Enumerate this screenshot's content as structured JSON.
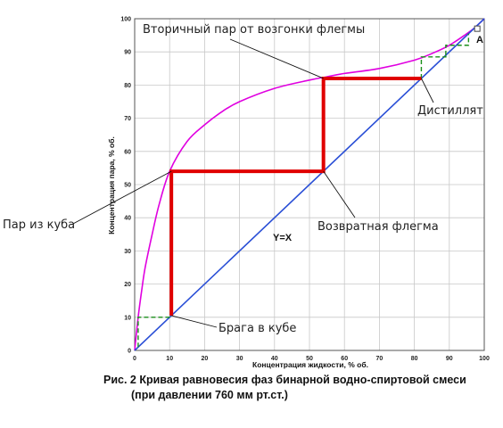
{
  "chart_data": {
    "type": "line",
    "xlabel": "Концентрация жидкости, % об.",
    "ylabel": "Концентрация пара, % об.",
    "xlim": [
      0,
      100
    ],
    "ylim": [
      0,
      100
    ],
    "xticks": [
      0,
      10,
      20,
      30,
      40,
      50,
      60,
      70,
      80,
      90,
      100
    ],
    "yticks": [
      0,
      10,
      20,
      30,
      40,
      50,
      60,
      70,
      80,
      90,
      100
    ],
    "grid": true,
    "series": [
      {
        "kind": "equilibrium-curve",
        "color": "#e000e0",
        "x": [
          0,
          1,
          2,
          3,
          5,
          7,
          10,
          15,
          20,
          25,
          30,
          40,
          50,
          55,
          60,
          70,
          80,
          85,
          90,
          95,
          97.2,
          100
        ],
        "y": [
          0,
          10,
          18,
          25,
          35,
          44,
          54,
          63,
          68,
          72,
          75,
          79,
          81.5,
          82.5,
          83.5,
          85,
          87.5,
          89.5,
          92,
          95.5,
          97.2,
          100
        ]
      },
      {
        "kind": "diagonal",
        "color": "#2a4fd6",
        "x": [
          0,
          100
        ],
        "y": [
          0,
          100
        ]
      }
    ],
    "steps_red": {
      "color": "#e00000",
      "x": [
        10.5,
        10.5,
        54,
        54,
        82
      ],
      "y": [
        10.5,
        54,
        54,
        82,
        82
      ]
    },
    "steps_green": {
      "color": "#1a8f1a",
      "segments": [
        {
          "x": [
            1,
            1,
            10.5
          ],
          "y": [
            1,
            10,
            10
          ]
        },
        {
          "x": [
            82,
            82,
            89,
            89
          ],
          "y": [
            82,
            88.5,
            88.5,
            89
          ]
        },
        {
          "x": [
            89,
            89,
            95.5,
            95.5
          ],
          "y": [
            89,
            92,
            92,
            95.5
          ]
        }
      ]
    },
    "point_A": {
      "label": "A",
      "x": 98,
      "y": 97
    }
  },
  "annotations": [
    {
      "text": "Вторичный пар от возгонки флегмы",
      "target": {
        "x": 54,
        "y": 82
      }
    },
    {
      "text": "Дистиллят",
      "target": {
        "x": 82,
        "y": 82
      }
    },
    {
      "text": "Пар из куба",
      "target": {
        "x": 10.5,
        "y": 54
      }
    },
    {
      "text": "Возвратная флегма",
      "target": {
        "x": 54,
        "y": 54
      }
    },
    {
      "text": "Брага в кубе",
      "target": {
        "x": 10.5,
        "y": 10.5
      }
    }
  ],
  "diagonal_label": "Y=X",
  "caption": {
    "line1": "Рис. 2  Кривая равновесия фаз бинарной водно-спиртовой смеси",
    "line2": "(при давлении 760 мм рт.ст.)"
  }
}
